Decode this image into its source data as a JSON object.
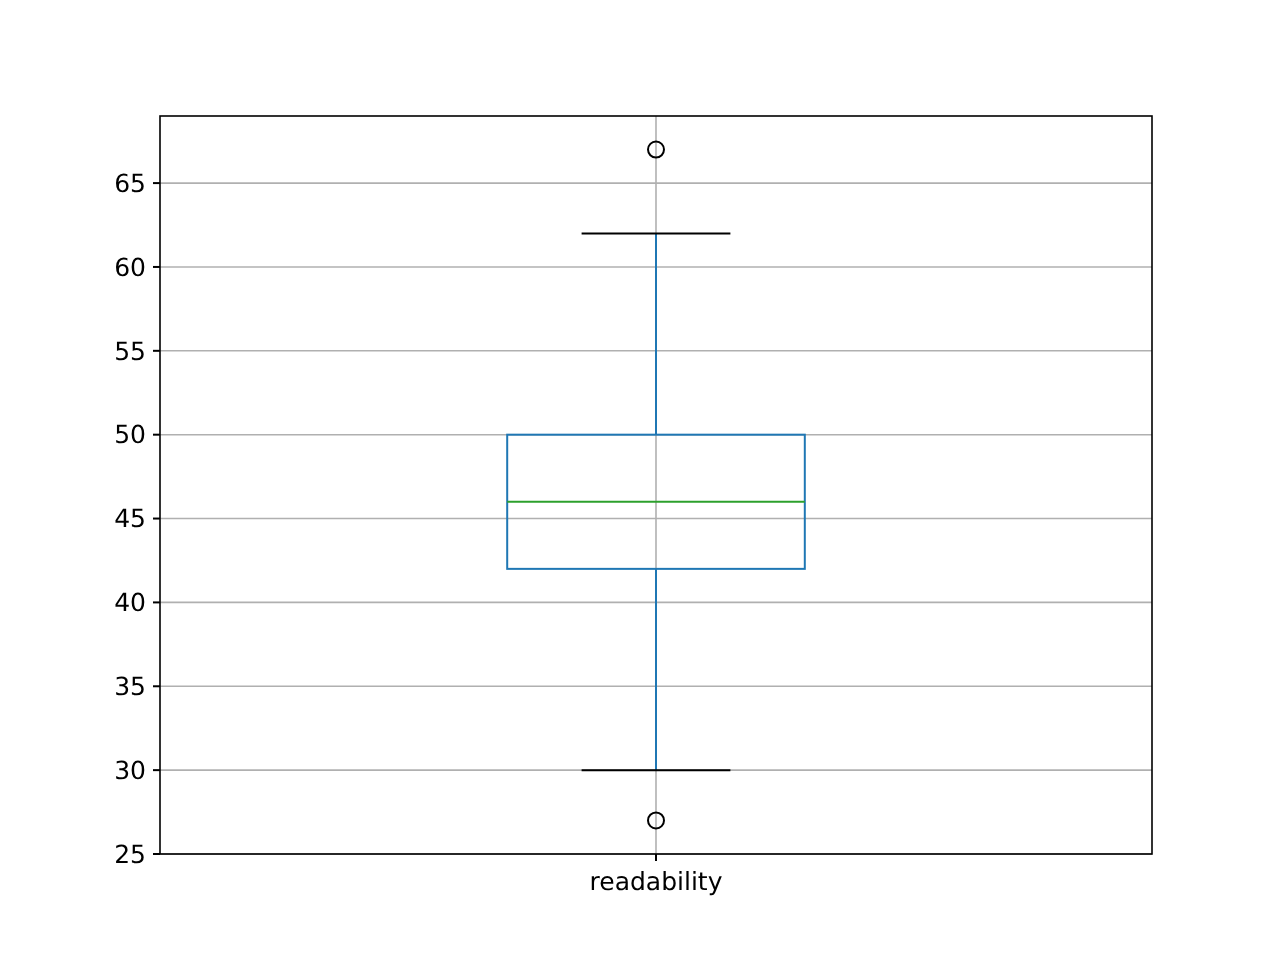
{
  "chart_data": {
    "type": "box",
    "categories": [
      "readability"
    ],
    "series": [
      {
        "color": "#1f77b4",
        "boxes": [
          {
            "low": 30,
            "q1": 42,
            "median": 46,
            "q3": 50,
            "high": 62,
            "outliers": [
              27,
              67
            ]
          }
        ]
      }
    ],
    "ylim": [
      25,
      69
    ],
    "yticks": [
      25,
      30,
      35,
      40,
      45,
      50,
      55,
      60,
      65
    ],
    "grid": true
  }
}
